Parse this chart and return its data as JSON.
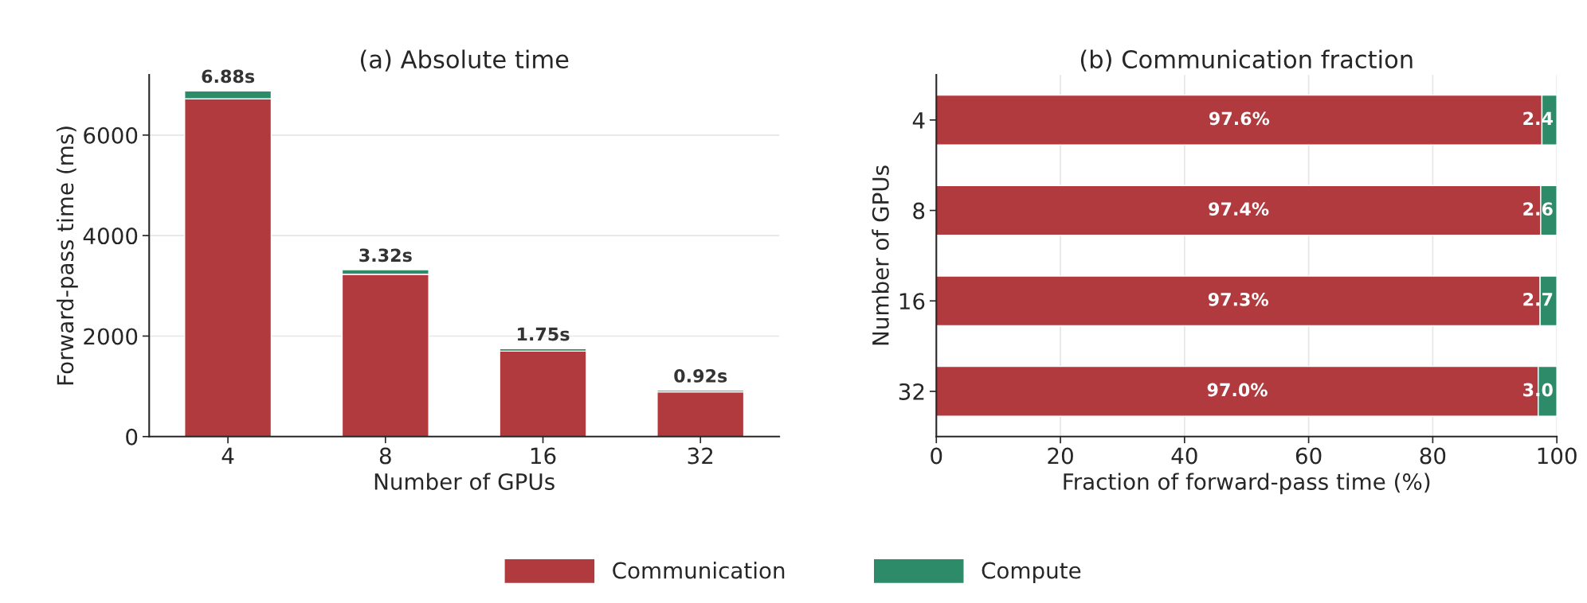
{
  "chart_data": [
    {
      "type": "bar",
      "title": "(a) Absolute time",
      "xlabel": "Number of GPUs",
      "ylabel": "Forward-pass time (ms)",
      "categories": [
        "4",
        "8",
        "16",
        "32"
      ],
      "stacked": true,
      "series": [
        {
          "name": "Communication",
          "color": "#b03a3e",
          "values": [
            6720,
            3230,
            1700,
            890
          ]
        },
        {
          "name": "Compute",
          "color": "#2e8b6a",
          "values": [
            160,
            90,
            50,
            30
          ]
        }
      ],
      "annotations": [
        {
          "text": "6.88s",
          "x": "4",
          "y": 6880
        },
        {
          "text": "3.32s",
          "x": "8",
          "y": 3320
        },
        {
          "text": "1.75s",
          "x": "16",
          "y": 1750
        },
        {
          "text": "0.92s",
          "x": "32",
          "y": 920
        }
      ],
      "ylim": [
        0,
        7200
      ],
      "yticks": [
        0,
        2000,
        4000,
        6000
      ],
      "grid": "y",
      "legend": "bottom"
    },
    {
      "type": "bar",
      "orientation": "horizontal",
      "title": "(b) Communication fraction",
      "xlabel": "Fraction of forward-pass time (%)",
      "ylabel": "Number of GPUs",
      "categories": [
        "4",
        "8",
        "16",
        "32"
      ],
      "stacked": true,
      "series": [
        {
          "color": "#b03a3e",
          "values": [
            97.6,
            97.4,
            97.3,
            97.0
          ],
          "value_labels": [
            "97.6%",
            "97.4%",
            "97.3%",
            "97.0%"
          ]
        },
        {
          "color": "#2e8b6a",
          "values": [
            2.4,
            2.6,
            2.7,
            3.0
          ],
          "value_labels": [
            "2.4",
            "2.6",
            "2.7",
            "3.0"
          ]
        }
      ],
      "xlim": [
        0,
        100
      ],
      "xticks": [
        0,
        20,
        40,
        60,
        80,
        100
      ],
      "grid": "x"
    }
  ]
}
